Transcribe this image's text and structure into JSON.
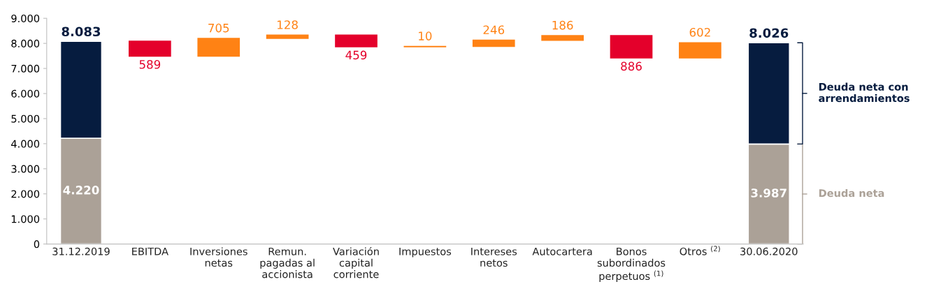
{
  "chart_data": {
    "type": "bar",
    "stacked": true,
    "categories": [
      "31.12.2019",
      "EBITDA",
      "Inversiones\nnetas",
      "Remun.\npagadas al\naccionista",
      "Variación\ncapital\ncorriente",
      "Impuestos",
      "Intereses\nnetos",
      "Autocartera",
      "Bonos\nsubordinados\nperpetuos $^{(1)}$",
      "Otros $^{(2)}$",
      "30.06.2020"
    ],
    "series": [
      {
        "name": "Deuda neta",
        "color": "#aba197",
        "values": [
          4220,
          null,
          null,
          null,
          null,
          null,
          null,
          null,
          null,
          null,
          3987
        ],
        "value_labels": [
          "4.220",
          null,
          null,
          null,
          null,
          null,
          null,
          null,
          null,
          null,
          "3.987"
        ]
      },
      {
        "name": "Deuda neta con arrendamientos",
        "color": "#061c3f",
        "values": [
          3863,
          null,
          null,
          null,
          null,
          null,
          null,
          null,
          null,
          null,
          4039
        ]
      },
      {
        "color": "#e4002b",
        "base": [
          null,
          8083,
          null,
          null,
          8327,
          null,
          null,
          null,
          8310,
          null,
          null
        ],
        "values": [
          null,
          -589,
          null,
          null,
          -459,
          null,
          null,
          null,
          -886,
          null,
          null
        ],
        "value_labels": [
          null,
          "589",
          null,
          null,
          "459",
          null,
          null,
          null,
          "886",
          null,
          null
        ]
      },
      {
        "color": "#ff8214",
        "base": [
          null,
          null,
          7494,
          8199,
          null,
          7868,
          7878,
          8124,
          null,
          7424,
          null
        ],
        "values": [
          null,
          null,
          705,
          128,
          null,
          10,
          246,
          186,
          null,
          602,
          null
        ],
        "value_labels": [
          null,
          null,
          "705",
          "128",
          null,
          "10",
          "246",
          "186",
          null,
          "602",
          null
        ]
      }
    ],
    "totals": [
      "8.083",
      null,
      null,
      null,
      null,
      null,
      null,
      null,
      null,
      null,
      "8.026"
    ],
    "ylim": [
      0,
      9000
    ],
    "yticks": [
      {
        "value": 0,
        "label": "0"
      },
      {
        "value": 1000,
        "label": "1.000"
      },
      {
        "value": 2000,
        "label": "2.000"
      },
      {
        "value": 3000,
        "label": "3.000"
      },
      {
        "value": 4000,
        "label": "4.000"
      },
      {
        "value": 5000,
        "label": "5.000"
      },
      {
        "value": 6000,
        "label": "6.000"
      },
      {
        "value": 7000,
        "label": "7.000"
      },
      {
        "value": 8000,
        "label": "8.000"
      },
      {
        "value": 9000,
        "label": "9.000"
      }
    ],
    "grid": false,
    "legend": "right"
  }
}
